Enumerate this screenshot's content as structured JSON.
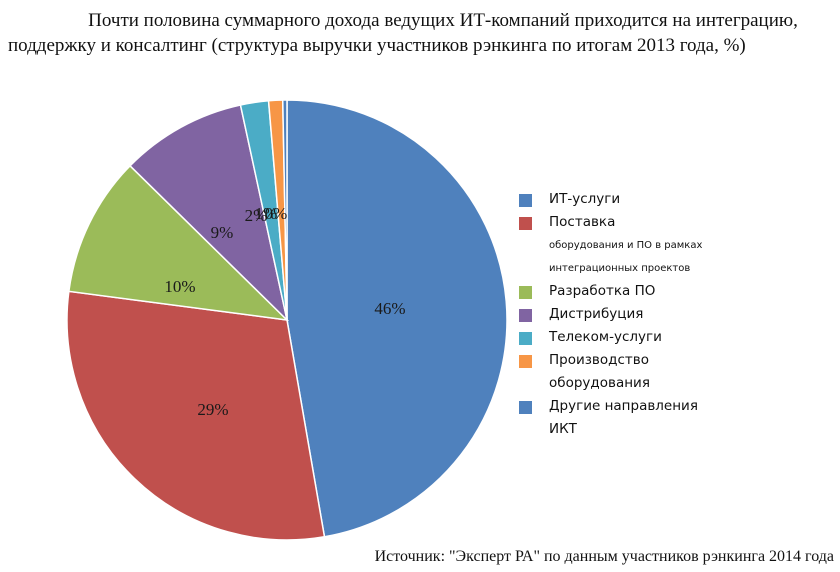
{
  "title": {
    "line1": "Почти половина суммарного дохода ведущих ИТ-компаний приходится на интеграцию,",
    "line2": "поддержку и консалтинг (структура выручки участников рэнкинга по итогам 2013 года, %)"
  },
  "source": "Источник: \"Эксперт РА\" по данным участников рэнкинга 2014 года",
  "chart_data": {
    "type": "pie",
    "start_angle_deg": 0,
    "direction": "clockwise",
    "slices": [
      {
        "name": "ИТ-услуги",
        "name_sub": "",
        "value": 46,
        "label": "46%",
        "color": "#4F81BD"
      },
      {
        "name": "Поставка",
        "name_sub": "оборудования и ПО в рамках интеграционных проектов",
        "value": 29,
        "label": "29%",
        "color": "#C0504D"
      },
      {
        "name": "Разработка ПО",
        "name_sub": "",
        "value": 10,
        "label": "10%",
        "color": "#9BBB59"
      },
      {
        "name": "Дистрибуция",
        "name_sub": "",
        "value": 9,
        "label": "9%",
        "color": "#8064A2"
      },
      {
        "name": "Телеком-услуги",
        "name_sub": "",
        "value": 2,
        "label": "2%",
        "color": "#4BACC6"
      },
      {
        "name": "Производство оборудования",
        "name_sub": "",
        "value": 1,
        "label": "1%",
        "color": "#F79646"
      },
      {
        "name": "Другие направления ИКТ",
        "name_sub": "",
        "value": 0.3,
        "label": "0%",
        "color": "#4F81BD"
      }
    ]
  }
}
